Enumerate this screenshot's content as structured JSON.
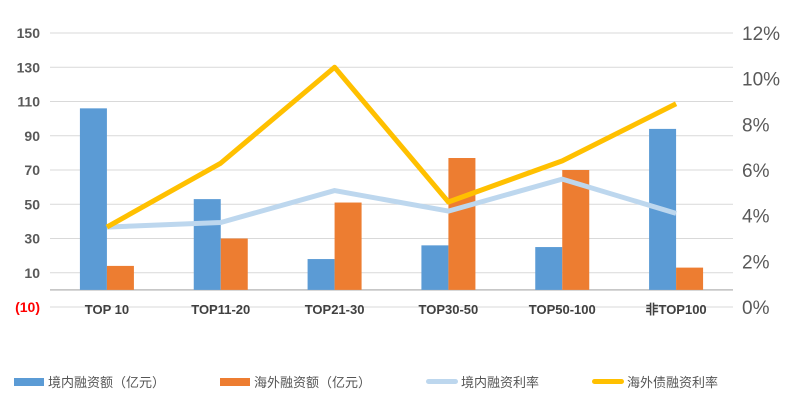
{
  "chart_data": {
    "type": "bar",
    "title": "",
    "categories": [
      "TOP 10",
      "TOP11-20",
      "TOP21-30",
      "TOP30-50",
      "TOP50-100",
      "非TOP100"
    ],
    "left_axis": {
      "ylim": [
        -10,
        150
      ],
      "ticks": [
        150,
        130,
        110,
        90,
        70,
        50,
        30,
        10,
        -10
      ],
      "tick_labels": [
        "150",
        "130",
        "110",
        "90",
        "70",
        "50",
        "30",
        "10",
        "(10)"
      ],
      "negative_label_color": "#ff0000"
    },
    "right_axis": {
      "ylim": [
        0,
        12
      ],
      "ticks": [
        0,
        2,
        4,
        6,
        8,
        10,
        12
      ],
      "tick_labels": [
        "0%",
        "2%",
        "4%",
        "6%",
        "8%",
        "10%",
        "12%"
      ]
    },
    "grid": true,
    "legend_position": "bottom",
    "series": [
      {
        "name": "境内融资额（亿元）",
        "type": "bar",
        "axis": "left",
        "color": "#5b9bd5",
        "values": [
          106,
          53,
          18,
          26,
          25,
          94
        ]
      },
      {
        "name": "海外融资额（亿元）",
        "type": "bar",
        "axis": "left",
        "color": "#ed7d31",
        "values": [
          14,
          30,
          51,
          77,
          70,
          13
        ]
      },
      {
        "name": "境内融资利率",
        "type": "line",
        "axis": "right",
        "color": "#bdd7ee",
        "values": [
          3.5,
          3.7,
          5.1,
          4.2,
          5.6,
          4.1
        ]
      },
      {
        "name": "海外债融资利率",
        "type": "line",
        "axis": "right",
        "color": "#ffc000",
        "values": [
          3.5,
          6.3,
          10.5,
          4.6,
          6.4,
          8.9
        ]
      }
    ]
  }
}
